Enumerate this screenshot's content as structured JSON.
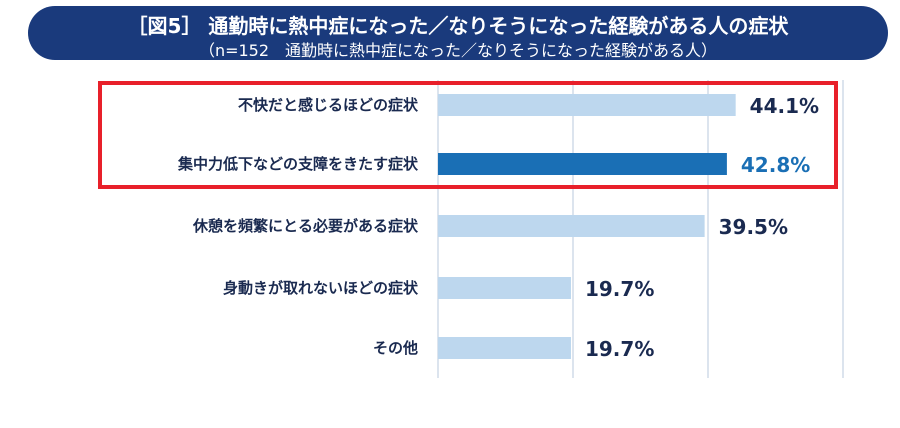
{
  "header": {
    "title": "［図5］ 通勤時に熱中症になった／なりそうになった経験がある人の症状",
    "subtitle": "（n=152　通勤時に熱中症になった／なりそうになった経験がある人）"
  },
  "chart_data": {
    "type": "bar",
    "orientation": "horizontal",
    "categories": [
      "不快だと感じるほどの症状",
      "集中力低下などの支障をきたす症状",
      "休憩を頻繁にとる必要がある症状",
      "身動きが取れないほどの症状",
      "その他"
    ],
    "values": [
      44.1,
      42.8,
      39.5,
      19.7,
      19.7
    ],
    "value_labels": [
      "44.1%",
      "42.8%",
      "39.5%",
      "19.7%",
      "19.7%"
    ],
    "highlighted_index": 1,
    "xlim": [
      0,
      60
    ],
    "grid": true,
    "colors": {
      "bar": "#bdd7ee",
      "bar_highlight": "#1a6fb5",
      "grid": "#b8c8dc",
      "highlight_box": "#e8202a",
      "title_bg": "#1a3a7c"
    }
  }
}
